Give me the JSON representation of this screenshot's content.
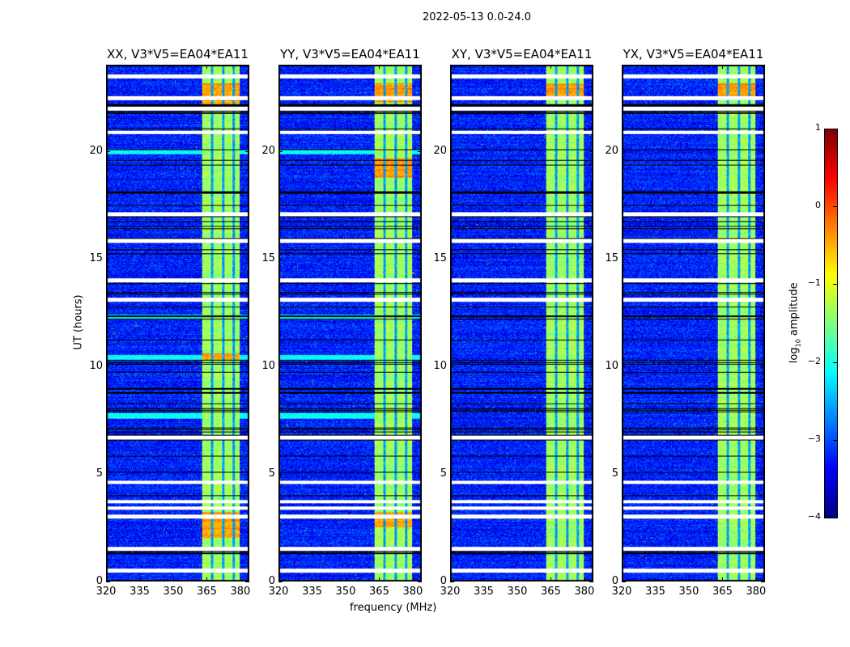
{
  "chart_data": {
    "type": "heatmap",
    "suptitle": "2022-05-13 0.0-24.0",
    "panels": [
      {
        "title": "XX, V3*V5=EA04*EA11",
        "hot_ranges": [
          [
            22.0,
            23.2
          ],
          [
            10.3,
            10.6
          ],
          [
            2.0,
            3.2
          ]
        ]
      },
      {
        "title": "YY, V3*V5=EA04*EA11",
        "hot_ranges": [
          [
            18.8,
            19.7
          ],
          [
            22.3,
            23.2
          ],
          [
            2.5,
            3.2
          ]
        ]
      },
      {
        "title": "XY, V3*V5=EA04*EA11",
        "hot_ranges": [
          [
            22.6,
            23.2
          ]
        ]
      },
      {
        "title": "YX, V3*V5=EA04*EA11",
        "hot_ranges": [
          [
            22.6,
            23.2
          ]
        ]
      }
    ],
    "xlabel": "frequency (MHz)",
    "ylabel": "UT (hours)",
    "xlim": [
      320,
      384
    ],
    "ylim": [
      0,
      24
    ],
    "xticks": [
      "320",
      "335",
      "350",
      "365",
      "380"
    ],
    "xtick_values": [
      320,
      335,
      350,
      365,
      380
    ],
    "yticks": [
      "0",
      "5",
      "10",
      "15",
      "20"
    ],
    "ytick_values": [
      0,
      5,
      10,
      15,
      20
    ],
    "band_mhz": [
      363,
      380
    ],
    "band_gaps_mhz": [
      367.5,
      372.5,
      377
    ],
    "flagged_hours": [
      23.5,
      22.5,
      22.0,
      20.9,
      17.1,
      15.85,
      14.0,
      13.1,
      6.7,
      4.6,
      3.7,
      3.4,
      3.0,
      1.5,
      0.5
    ],
    "colorbar": {
      "label": "log",
      "label_sub": "10",
      "label_rest": " amplitude",
      "range": [
        -4,
        1
      ],
      "ticks": [
        "1",
        "0",
        "−1",
        "−2",
        "−3",
        "−4"
      ],
      "tick_values": [
        1,
        0,
        -1,
        -2,
        -3,
        -4
      ],
      "colormap": "jet"
    }
  }
}
